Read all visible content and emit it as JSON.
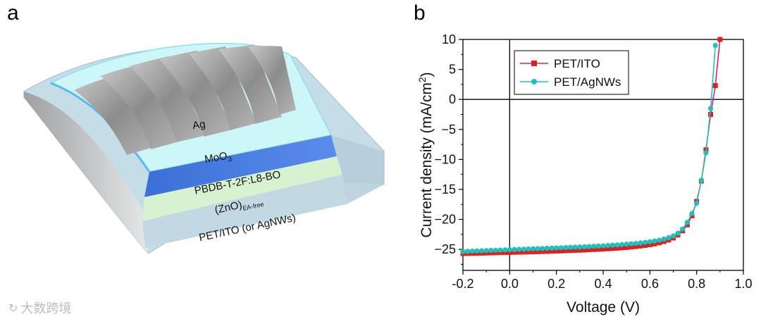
{
  "panel_a": {
    "label": "a",
    "layers": {
      "electrode": "Ag",
      "htl": "MoO",
      "htl_sub": "3",
      "active": "PBDB-T-2F:L8-BO",
      "etl": "(ZnO)",
      "etl_sub": "EA-free",
      "substrate": "PET/ITO (or AgNWs)"
    },
    "colors": {
      "ag": "#9a9a9a",
      "moo3": "#ccf6f8",
      "active": "#4a7bdc",
      "zno": "#d6f2cf",
      "substrate": "#c5dde6"
    }
  },
  "panel_b": {
    "label": "b",
    "chart_data": {
      "type": "line",
      "title": "",
      "xlabel": "Voltage (V)",
      "ylabel_main": "Current density (mA/cm",
      "ylabel_sup": "2",
      "ylabel_end": ")",
      "xlim": [
        -0.2,
        1.0
      ],
      "ylim": [
        -28.5,
        10
      ],
      "xticks": [
        -0.2,
        0.0,
        0.2,
        0.4,
        0.6,
        0.8,
        1.0
      ],
      "xtick_labels": [
        "-0.2",
        "0.0",
        "0.2",
        "0.4",
        "0.6",
        "0.8",
        "1.0"
      ],
      "yticks": [
        10,
        5,
        0,
        -5,
        -10,
        -15,
        -20,
        -25
      ],
      "ytick_labels": [
        "10",
        "5",
        "0",
        "−5",
        "−10",
        "−15",
        "−20",
        "−25"
      ],
      "legend_position": "top-left",
      "series": [
        {
          "name": "PET/ITO",
          "color": "#e8177d",
          "marker_color": "#e0201c",
          "marker": "square",
          "x": [
            -0.2,
            -0.18,
            -0.16,
            -0.14,
            -0.12,
            -0.1,
            -0.08,
            -0.06,
            -0.04,
            -0.02,
            0.0,
            0.02,
            0.04,
            0.06,
            0.08,
            0.1,
            0.12,
            0.14,
            0.16,
            0.18,
            0.2,
            0.22,
            0.24,
            0.26,
            0.28,
            0.3,
            0.32,
            0.34,
            0.36,
            0.38,
            0.4,
            0.42,
            0.44,
            0.46,
            0.48,
            0.5,
            0.52,
            0.54,
            0.56,
            0.58,
            0.6,
            0.62,
            0.64,
            0.66,
            0.68,
            0.7,
            0.72,
            0.74,
            0.76,
            0.78,
            0.8,
            0.82,
            0.84,
            0.86,
            0.88,
            0.9
          ],
          "y": [
            -25.7,
            -25.68,
            -25.66,
            -25.64,
            -25.62,
            -25.6,
            -25.58,
            -25.56,
            -25.54,
            -25.52,
            -25.5,
            -25.48,
            -25.46,
            -25.44,
            -25.42,
            -25.4,
            -25.38,
            -25.35,
            -25.33,
            -25.3,
            -25.28,
            -25.25,
            -25.22,
            -25.19,
            -25.16,
            -25.13,
            -25.1,
            -25.06,
            -25.02,
            -24.98,
            -24.94,
            -24.9,
            -24.85,
            -24.8,
            -24.74,
            -24.68,
            -24.61,
            -24.53,
            -24.44,
            -24.34,
            -24.22,
            -24.08,
            -23.91,
            -23.7,
            -23.45,
            -23.1,
            -22.6,
            -21.9,
            -20.9,
            -19.4,
            -17.0,
            -13.6,
            -8.4,
            -2.5,
            2.3,
            10.0
          ]
        },
        {
          "name": "PET/AgNWs",
          "color": "#1ec0c0",
          "marker_color": "#1ec0c0",
          "marker": "circle",
          "x": [
            -0.2,
            -0.18,
            -0.16,
            -0.14,
            -0.12,
            -0.1,
            -0.08,
            -0.06,
            -0.04,
            -0.02,
            0.0,
            0.02,
            0.04,
            0.06,
            0.08,
            0.1,
            0.12,
            0.14,
            0.16,
            0.18,
            0.2,
            0.22,
            0.24,
            0.26,
            0.28,
            0.3,
            0.32,
            0.34,
            0.36,
            0.38,
            0.4,
            0.42,
            0.44,
            0.46,
            0.48,
            0.5,
            0.52,
            0.54,
            0.56,
            0.58,
            0.6,
            0.62,
            0.64,
            0.66,
            0.68,
            0.7,
            0.72,
            0.74,
            0.76,
            0.78,
            0.8,
            0.82,
            0.84,
            0.86,
            0.88
          ],
          "y": [
            -25.35,
            -25.32,
            -25.29,
            -25.26,
            -25.23,
            -25.2,
            -25.17,
            -25.14,
            -25.11,
            -25.08,
            -25.05,
            -25.02,
            -24.99,
            -24.96,
            -24.93,
            -24.9,
            -24.87,
            -24.84,
            -24.81,
            -24.78,
            -24.75,
            -24.72,
            -24.69,
            -24.66,
            -24.63,
            -24.6,
            -24.56,
            -24.52,
            -24.48,
            -24.44,
            -24.4,
            -24.35,
            -24.3,
            -24.25,
            -24.19,
            -24.13,
            -24.06,
            -23.99,
            -23.91,
            -23.82,
            -23.72,
            -23.6,
            -23.46,
            -23.28,
            -23.06,
            -22.75,
            -22.3,
            -21.6,
            -20.5,
            -19.0,
            -17.3,
            -13.5,
            -8.9,
            -1.5,
            9.0
          ]
        }
      ]
    }
  },
  "watermark": {
    "text": "大数跨境",
    "icon": "brand-logo-icon"
  }
}
